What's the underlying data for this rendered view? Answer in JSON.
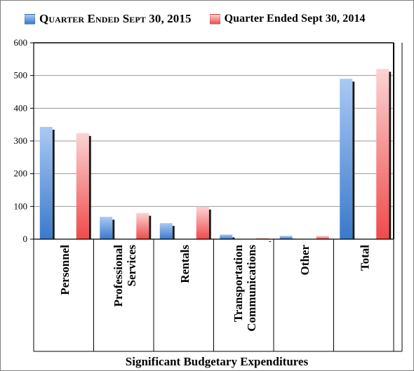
{
  "chart_data": {
    "type": "bar",
    "title": "",
    "xlabel": "Significant Budgetary Expenditures",
    "ylabel": "",
    "categories": [
      "Personnel",
      "Professional Services",
      "Rentals",
      "Transportation Communications",
      "Other",
      "Total"
    ],
    "category_lines": [
      [
        "Personnel"
      ],
      [
        "Professional",
        "Services"
      ],
      [
        "Rentals"
      ],
      [
        "Transportation",
        "Communications"
      ],
      [
        "Other"
      ],
      [
        "Total"
      ]
    ],
    "series": [
      {
        "name": "Quarter Ended Sept 30, 2015",
        "values": [
          343,
          68,
          49,
          14,
          10,
          490
        ],
        "color_top": "#a9c9f3",
        "color_bottom": "#3a79cc"
      },
      {
        "name": "Quarter Ended Sept 30, 2014",
        "values": [
          324,
          80,
          99,
          2,
          10,
          520
        ],
        "color_top": "#fbd3d3",
        "color_bottom": "#f04a4a"
      }
    ],
    "ylim": [
      0,
      600
    ],
    "yticks": [
      0,
      100,
      200,
      300,
      400,
      500,
      600
    ],
    "grid": true,
    "legend_position": "top"
  }
}
